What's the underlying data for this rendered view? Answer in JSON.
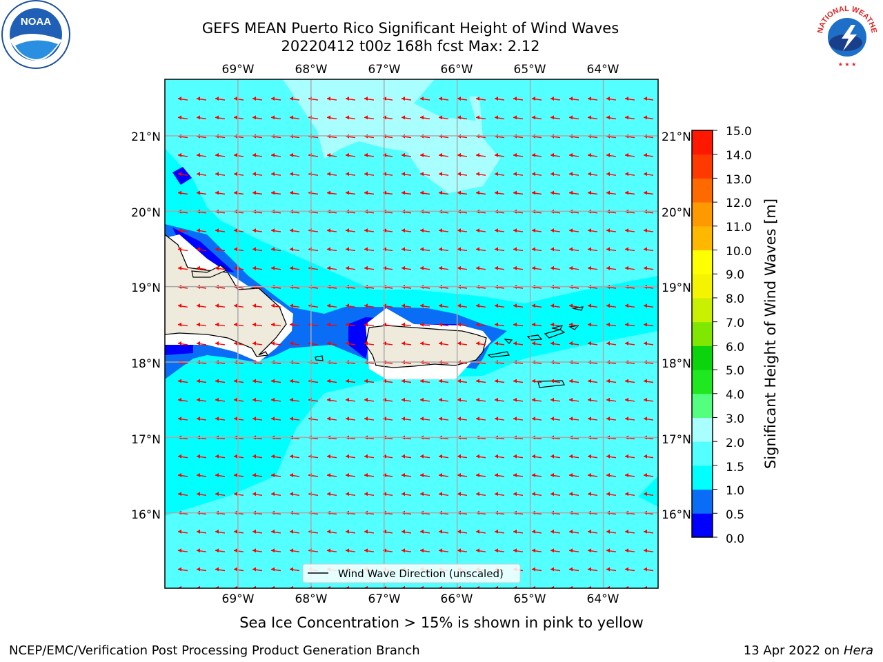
{
  "title": {
    "line1": "GEFS MEAN Puerto Rico Significant Height of Wind Waves",
    "line2": "20220412 t00z 168h fcst   Max: 2.12"
  },
  "map": {
    "longitude_ticks": [
      "69°W",
      "68°W",
      "67°W",
      "66°W",
      "65°W",
      "64°W"
    ],
    "latitude_ticks": [
      "21°N",
      "20°N",
      "19°N",
      "18°N",
      "17°N",
      "16°N"
    ],
    "lon_range": [
      -70.0,
      -63.25
    ],
    "lat_range": [
      15.0,
      21.75
    ],
    "arrow_direction": "east-to-west (from ENE)",
    "arrow_color": "#ff0000",
    "legend_label": "Wind Wave Direction (unscaled)"
  },
  "colorbar": {
    "label": "Significant Height of Wind Waves [m]",
    "ticks": [
      "15.0",
      "14.0",
      "13.0",
      "12.0",
      "11.0",
      "10.0",
      "9.0",
      "8.0",
      "7.0",
      "6.0",
      "5.0",
      "4.0",
      "3.0",
      "2.0",
      "1.5",
      "1.0",
      "0.5",
      "0.0"
    ],
    "colors_bottom_to_top": [
      "#0000ff",
      "#0a6df5",
      "#00ffff",
      "#54ffff",
      "#a9ffff",
      "#54ff7f",
      "#20e820",
      "#0cd40c",
      "#80e800",
      "#c8f000",
      "#f4f400",
      "#ffff00",
      "#ffb800",
      "#ff9900",
      "#ff6a00",
      "#ff3a00",
      "#ff1800"
    ]
  },
  "logos": {
    "noaa_text": "NOAA",
    "nws_text": "NATIONAL WEATHER SERVICE"
  },
  "footer": {
    "subtitle": "Sea Ice Concentration > 15% is shown in pink to yellow",
    "left": "NCEP/EMC/Verification Post Processing Product Generation Branch",
    "right_prefix": "13 Apr 2022 on ",
    "right_machine": "Hera"
  }
}
